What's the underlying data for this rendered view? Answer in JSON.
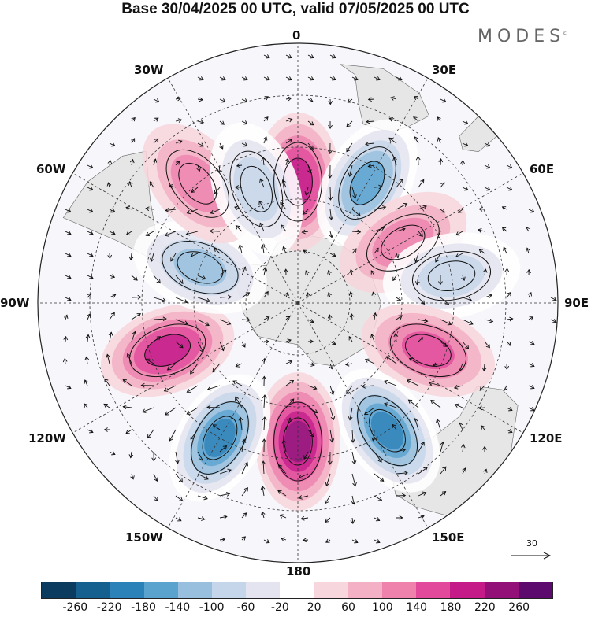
{
  "title": "Base 30/04/2025 00 UTC, valid 07/05/2025 00 UTC",
  "brand": "MODES",
  "brand_mark": "©",
  "longitude_labels": {
    "top": "0",
    "bottom": "180",
    "left": "90W",
    "right": "90E",
    "upper_left_1": "30W",
    "upper_left_2": "60W",
    "upper_right_1": "30E",
    "upper_right_2": "60E",
    "lower_left_1": "120W",
    "lower_left_2": "150W",
    "lower_right_1": "120E",
    "lower_right_2": "150E"
  },
  "vector_scale_label": "30",
  "colorbar": {
    "colors": [
      "#0b3b5e",
      "#15608f",
      "#2b82b8",
      "#5ba3cf",
      "#98c0de",
      "#c5d6ea",
      "#e4e4f1",
      "#ffffff",
      "#f8d6dd",
      "#f4b0c4",
      "#ee82ad",
      "#e2499b",
      "#c41b89",
      "#931079",
      "#5c0a6e"
    ],
    "ticks": [
      "-260",
      "-220",
      "-180",
      "-140",
      "-100",
      "-60",
      "-20",
      "20",
      "60",
      "100",
      "140",
      "180",
      "220",
      "260"
    ]
  },
  "map": {
    "land_color": "#e6e6e6",
    "anomalies": [
      {
        "lon": 0,
        "lat": -55,
        "value": 180
      },
      {
        "lon": 30,
        "lat": -50,
        "value": -180
      },
      {
        "lon": 60,
        "lat": -55,
        "value": 120
      },
      {
        "lon": 80,
        "lat": -45,
        "value": -120
      },
      {
        "lon": 110,
        "lat": -50,
        "value": 140
      },
      {
        "lon": 145,
        "lat": -45,
        "value": -220
      },
      {
        "lon": 180,
        "lat": -50,
        "value": 220
      },
      {
        "lon": 210,
        "lat": -45,
        "value": -240
      },
      {
        "lon": 250,
        "lat": -50,
        "value": 200
      },
      {
        "lon": 290,
        "lat": -60,
        "value": -160
      },
      {
        "lon": 320,
        "lat": -45,
        "value": 100
      },
      {
        "lon": 340,
        "lat": -55,
        "value": -120
      }
    ]
  }
}
